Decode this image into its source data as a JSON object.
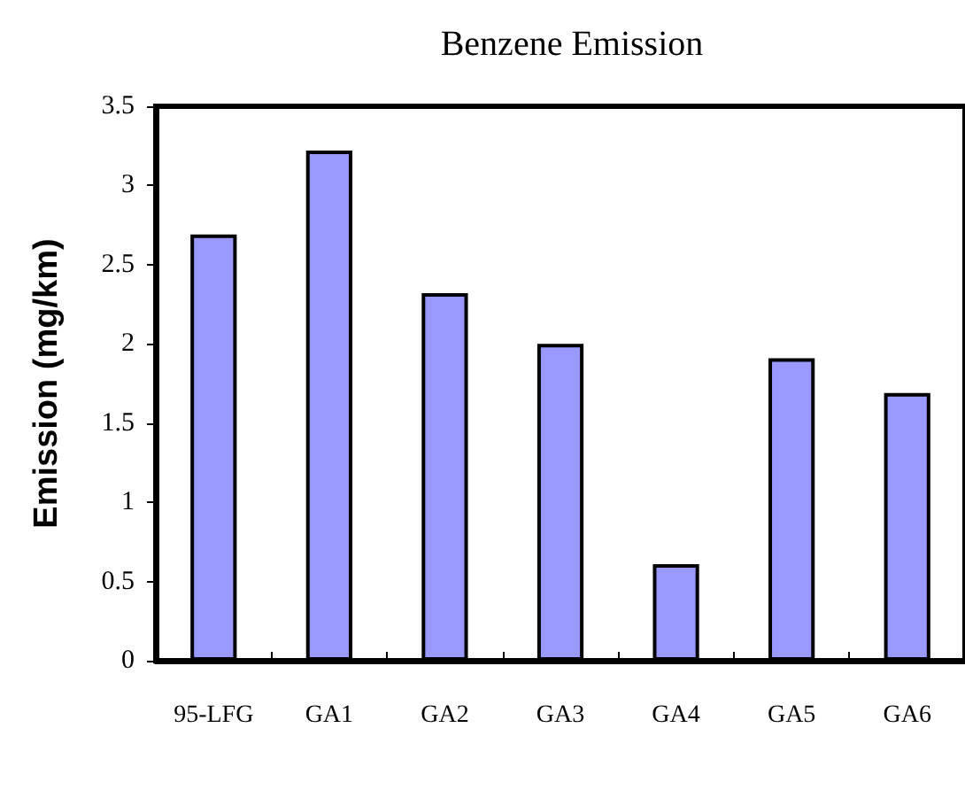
{
  "chart_data": {
    "type": "bar",
    "title": "Benzene Emission",
    "ylabel": "Emission (mg/km)",
    "categories": [
      "95-LFG",
      "GA1",
      "GA2",
      "GA3",
      "GA4",
      "GA5",
      "GA6"
    ],
    "values": [
      2.69,
      3.22,
      2.32,
      2.0,
      0.61,
      1.91,
      1.69
    ],
    "color": "#9999ff",
    "ylim": [
      0,
      3.5
    ],
    "yticks": [
      0,
      0.5,
      1,
      1.5,
      2,
      2.5,
      3,
      3.5
    ],
    "grid": false
  }
}
